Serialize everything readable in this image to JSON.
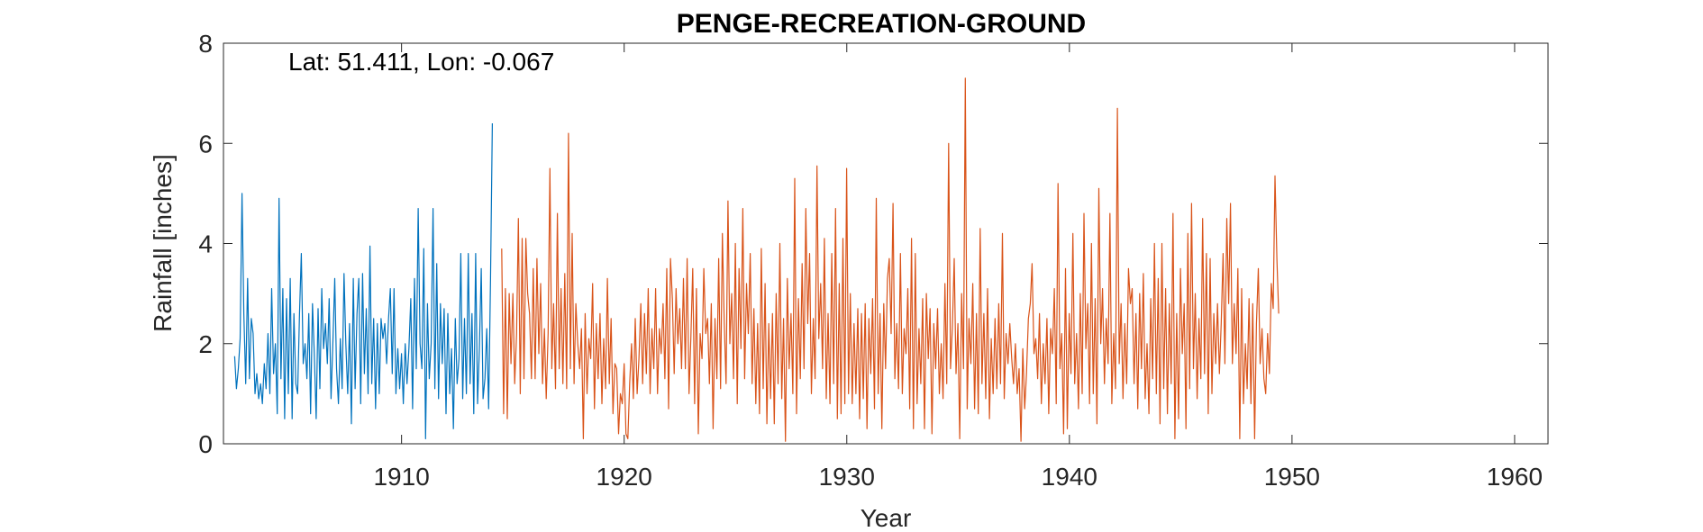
{
  "chart_data": {
    "type": "line",
    "title": "PENGE-RECREATION-GROUND",
    "annotation": "Lat: 51.411, Lon: -0.067",
    "xlabel": "Year",
    "ylabel": "Rainfall [inches]",
    "xlim": [
      1902.0,
      1961.5
    ],
    "ylim": [
      0,
      8
    ],
    "xticks": [
      1910,
      1920,
      1930,
      1940,
      1950,
      1960
    ],
    "yticks": [
      0,
      2,
      4,
      6,
      8
    ],
    "grid": false,
    "legend": "none",
    "series": [
      {
        "color": "#0072BD",
        "x0": 1902.5,
        "step_years": 0.0833,
        "values": [
          1.75,
          1.1,
          1.5,
          2.1,
          5.0,
          2.6,
          1.2,
          3.3,
          1.3,
          2.5,
          2.2,
          1.0,
          1.4,
          0.9,
          1.2,
          0.8,
          1.6,
          1.1,
          2.2,
          1.0,
          3.1,
          1.4,
          2.0,
          0.6,
          4.9,
          1.3,
          3.1,
          0.5,
          2.9,
          1.0,
          3.3,
          0.5,
          2.6,
          1.2,
          1.0,
          2.6,
          3.8,
          1.6,
          2.0,
          1.3,
          2.6,
          0.6,
          2.8,
          1.8,
          0.5,
          2.7,
          1.1,
          3.1,
          1.9,
          2.4,
          1.6,
          2.9,
          0.9,
          2.0,
          3.3,
          1.5,
          0.8,
          2.1,
          1.1,
          3.4,
          2.0,
          1.0,
          2.4,
          0.4,
          3.3,
          1.1,
          2.6,
          3.3,
          0.8,
          3.4,
          1.4,
          2.7,
          1.0,
          3.95,
          1.2,
          2.5,
          0.7,
          2.4,
          1.0,
          2.5,
          2.1,
          2.4,
          1.6,
          2.5,
          3.1,
          1.4,
          3.1,
          1.0,
          1.9,
          1.1,
          1.8,
          0.8,
          2.0,
          1.2,
          1.9,
          2.9,
          0.7,
          3.3,
          1.5,
          4.7,
          2.0,
          1.5,
          3.9,
          0.1,
          2.8,
          1.3,
          2.0,
          4.7,
          1.1,
          3.6,
          0.9,
          2.8,
          1.6,
          2.7,
          0.6,
          2.6,
          1.0,
          1.9,
          0.3,
          2.5,
          1.2,
          1.7,
          3.8,
          0.9,
          2.5,
          1.0,
          3.8,
          1.2,
          2.6,
          0.6,
          3.8,
          0.8,
          1.9,
          3.5,
          0.9,
          1.3,
          2.3,
          0.7,
          3.3,
          6.4
        ]
      },
      {
        "color": "#D95319",
        "x0": 1914.5,
        "step_years": 0.0833,
        "values": [
          3.9,
          0.6,
          3.1,
          0.5,
          3.0,
          1.6,
          3.0,
          1.2,
          2.2,
          4.5,
          1.0,
          4.1,
          1.3,
          4.1,
          3.0,
          2.6,
          1.3,
          3.5,
          1.3,
          3.7,
          1.8,
          3.2,
          1.2,
          2.3,
          0.9,
          2.2,
          5.5,
          1.5,
          2.8,
          1.1,
          4.6,
          1.5,
          3.1,
          1.2,
          3.4,
          1.1,
          6.2,
          1.5,
          4.2,
          1.2,
          2.8,
          2.0,
          1.5,
          2.3,
          0.1,
          2.6,
          1.0,
          2.1,
          1.7,
          3.2,
          0.7,
          2.4,
          1.3,
          2.6,
          0.8,
          2.1,
          1.1,
          3.3,
          1.2,
          2.5,
          0.6,
          1.6,
          1.5,
          0.2,
          1.0,
          0.8,
          1.6,
          0.2,
          0.1,
          1.2,
          2.0,
          0.9,
          2.5,
          1.0,
          1.7,
          2.8,
          1.2,
          2.6,
          1.4,
          3.1,
          1.0,
          2.3,
          1.5,
          3.1,
          1.0,
          2.3,
          1.8,
          2.8,
          1.3,
          3.5,
          0.7,
          3.7,
          2.9,
          1.4,
          3.1,
          2.0,
          2.7,
          1.5,
          3.3,
          1.5,
          3.7,
          1.0,
          2.1,
          3.5,
          0.8,
          3.1,
          0.2,
          2.2,
          1.7,
          3.5,
          2.2,
          2.5,
          1.2,
          2.8,
          0.3,
          2.5,
          1.3,
          3.7,
          1.1,
          4.2,
          2.4,
          1.2,
          4.85,
          2.0,
          3.0,
          1.3,
          4.0,
          0.8,
          3.5,
          1.9,
          4.7,
          1.3,
          3.2,
          2.2,
          3.8,
          1.2,
          2.7,
          0.8,
          2.4,
          0.6,
          3.9,
          1.1,
          3.2,
          0.4,
          2.4,
          0.9,
          2.6,
          0.4,
          3.0,
          1.2,
          4.0,
          0.9,
          2.5,
          0.05,
          3.3,
          1.5,
          2.6,
          1.0,
          5.3,
          0.6,
          2.9,
          1.3,
          3.6,
          1.5,
          4.7,
          2.4,
          3.8,
          1.0,
          2.5,
          1.3,
          5.55,
          2.1,
          3.2,
          1.5,
          4.1,
          0.9,
          2.6,
          0.8,
          3.8,
          1.2,
          4.7,
          0.5,
          3.2,
          0.6,
          4.1,
          0.8,
          5.5,
          1.0,
          3.0,
          0.8,
          2.4,
          1.0,
          2.7,
          0.5,
          2.6,
          0.9,
          2.8,
          0.3,
          2.5,
          1.4,
          2.9,
          0.7,
          4.9,
          1.0,
          2.6,
          0.3,
          2.8,
          1.5,
          3.3,
          3.7,
          2.2,
          4.8,
          1.3,
          2.4,
          1.1,
          3.8,
          1.0,
          2.3,
          1.8,
          3.1,
          0.7,
          4.1,
          0.3,
          3.8,
          0.8,
          2.3,
          1.2,
          2.9,
          0.3,
          3.0,
          1.7,
          2.7,
          0.2,
          2.4,
          1.5,
          2.7,
          1.0,
          2.0,
          0.9,
          3.2,
          1.2,
          6.0,
          1.5,
          2.3,
          3.7,
          1.4,
          2.4,
          0.1,
          3.0,
          1.5,
          7.3,
          0.7,
          2.5,
          1.6,
          3.2,
          0.7,
          2.6,
          0.6,
          4.3,
          1.2,
          2.6,
          0.9,
          3.1,
          0.5,
          2.1,
          1.0,
          2.5,
          1.1,
          2.8,
          1.2,
          4.2,
          0.9,
          2.2,
          1.6,
          2.4,
          1.7,
          1.2,
          2.0,
          1.0,
          1.5,
          0.05,
          1.9,
          0.7,
          1.4,
          2.5,
          2.8,
          3.6,
          1.8,
          2.1,
          1.3,
          2.6,
          0.8,
          2.0,
          1.2,
          2.5,
          0.6,
          2.3,
          1.8,
          3.1,
          0.8,
          5.2,
          1.5,
          2.2,
          0.2,
          3.5,
          0.3,
          2.6,
          1.4,
          4.2,
          1.2,
          2.2,
          0.7,
          3.0,
          1.0,
          4.6,
          1.9,
          2.8,
          0.8,
          4.0,
          1.0,
          2.9,
          0.4,
          5.1,
          2.0,
          3.1,
          1.2,
          2.5,
          1.6,
          4.6,
          0.8,
          2.2,
          1.1,
          6.7,
          1.6,
          2.8,
          0.9,
          2.4,
          1.2,
          3.5,
          2.8,
          3.1,
          1.2,
          2.6,
          0.7,
          3.0,
          1.5,
          3.4,
          0.9,
          2.0,
          0.6,
          2.9,
          1.3,
          4.0,
          1.0,
          3.3,
          0.4,
          4.0,
          1.1,
          3.1,
          0.6,
          2.8,
          1.2,
          4.6,
          0.1,
          2.6,
          0.5,
          3.5,
          1.8,
          2.8,
          0.3,
          4.2,
          1.1,
          4.8,
          1.5,
          3.0,
          0.9,
          2.5,
          1.3,
          4.5,
          1.4,
          3.8,
          0.6,
          3.7,
          1.0,
          2.6,
          1.6,
          2.8,
          1.4,
          2.4,
          3.8,
          1.6,
          4.5,
          2.8,
          4.8,
          1.6,
          2.8,
          1.8,
          3.5,
          0.1,
          3.1,
          0.8,
          2.0,
          1.1,
          2.9,
          0.8,
          2.8,
          0.1,
          2.4,
          3.5,
          1.6,
          2.3,
          1.3,
          1.0,
          2.2,
          1.4,
          3.2,
          2.7,
          5.35,
          3.7,
          2.6
        ]
      }
    ]
  }
}
